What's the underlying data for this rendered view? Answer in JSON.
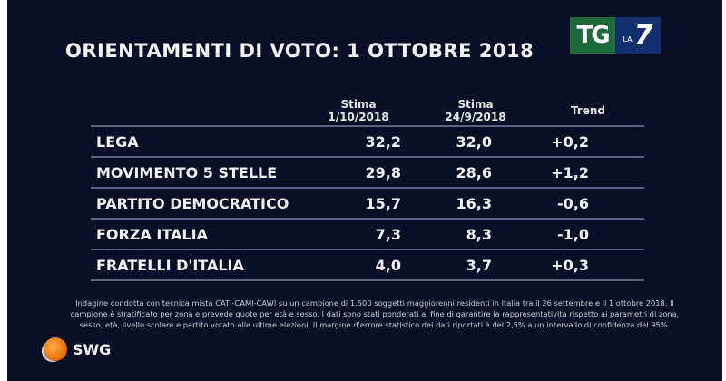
{
  "header": {
    "title": "ORIENTAMENTI DI VOTO: 1 OTTOBRE 2018",
    "logo": {
      "tg": "TG",
      "la": "LA",
      "seven": "7"
    }
  },
  "table": {
    "columns": [
      {
        "label": "",
        "sub": ""
      },
      {
        "label": "Stima",
        "sub": "1/10/2018"
      },
      {
        "label": "Stima",
        "sub": "24/9/2018"
      },
      {
        "label": "Trend",
        "sub": ""
      }
    ],
    "rows": [
      {
        "party": "LEGA",
        "current": "32,2",
        "previous": "32,0",
        "trend": "+0,2"
      },
      {
        "party": "MOVIMENTO 5 STELLE",
        "current": "29,8",
        "previous": "28,6",
        "trend": "+1,2"
      },
      {
        "party": "PARTITO DEMOCRATICO",
        "current": "15,7",
        "previous": "16,3",
        "trend": "-0,6"
      },
      {
        "party": "FORZA ITALIA",
        "current": "7,3",
        "previous": "8,3",
        "trend": "-1,0"
      },
      {
        "party": "FRATELLI D'ITALIA",
        "current": "4,0",
        "previous": "3,7",
        "trend": "+0,3"
      }
    ]
  },
  "footnote": "Indagine condotta con tecnica mista CATI-CAMI-CAWI su un campione di 1.500 soggetti maggiorenni residenti in Italia tra il 26 settembre e il 1 ottobre 2018. Il campione è stratificato per zona e prevede quote per età e sesso. I dati sono stati ponderati al fine di garantire la rappresentatività rispetto ai parametri di zona, sesso, età, livello scolare e partito votato alle ultime elezioni. Il margine d'errore statistico dei dati riportati è del 2,5% a un intervallo di confidenza del 95%.",
  "brand": {
    "name": "SWG",
    "icon": "globe-icon"
  },
  "colors": {
    "background": "#0a0e26",
    "separator": "#5a6183",
    "tg_green": "#1d6a3a",
    "la7_blue": "#13306e",
    "swg_orange": "#e8720c"
  }
}
